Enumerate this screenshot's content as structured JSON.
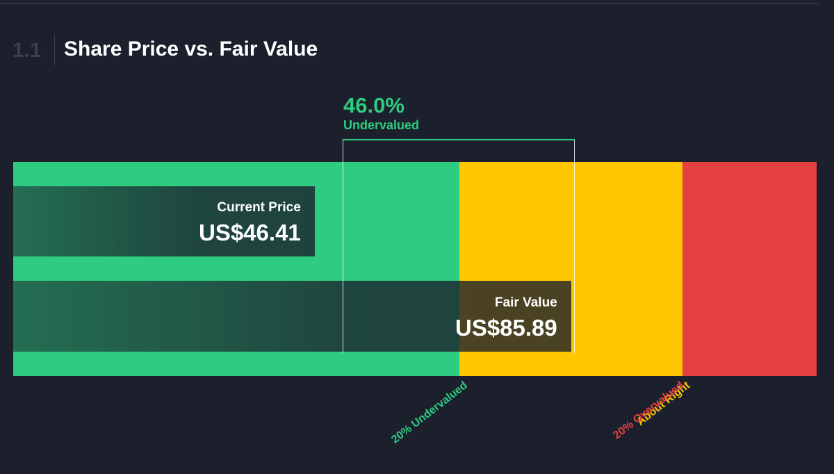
{
  "header": {
    "section_number": "1.1",
    "title": "Share Price vs. Fair Value"
  },
  "colors": {
    "background": "#1b202c",
    "undervalued": "#2ecc80",
    "about_right": "#ffc700",
    "overvalued": "#e64141",
    "text": "#ffffff"
  },
  "chart_data": {
    "type": "bar",
    "title": "Share Price vs. Fair Value",
    "currency": "US$",
    "current_price": {
      "label": "Current Price",
      "display": "US$46.41",
      "value": 46.41
    },
    "fair_value": {
      "label": "Fair Value",
      "display": "US$85.89",
      "value": 85.89
    },
    "discount": {
      "display": "46.0%",
      "value": 46.0,
      "label": "Undervalued"
    },
    "zones": [
      {
        "name": "undervalued",
        "caption": "20% Undervalued",
        "from_fraction_of_fair_value": 0,
        "to_fraction_of_fair_value": 0.8,
        "color": "#2ecc80"
      },
      {
        "name": "about_right",
        "caption": "About Right",
        "from_fraction_of_fair_value": 0.8,
        "to_fraction_of_fair_value": 1.2,
        "color": "#ffc700"
      },
      {
        "name": "overvalued",
        "caption": "20% Overvalued",
        "from_fraction_of_fair_value": 1.2,
        "to_fraction_of_fair_value": 1.44,
        "color": "#e64141"
      }
    ]
  }
}
